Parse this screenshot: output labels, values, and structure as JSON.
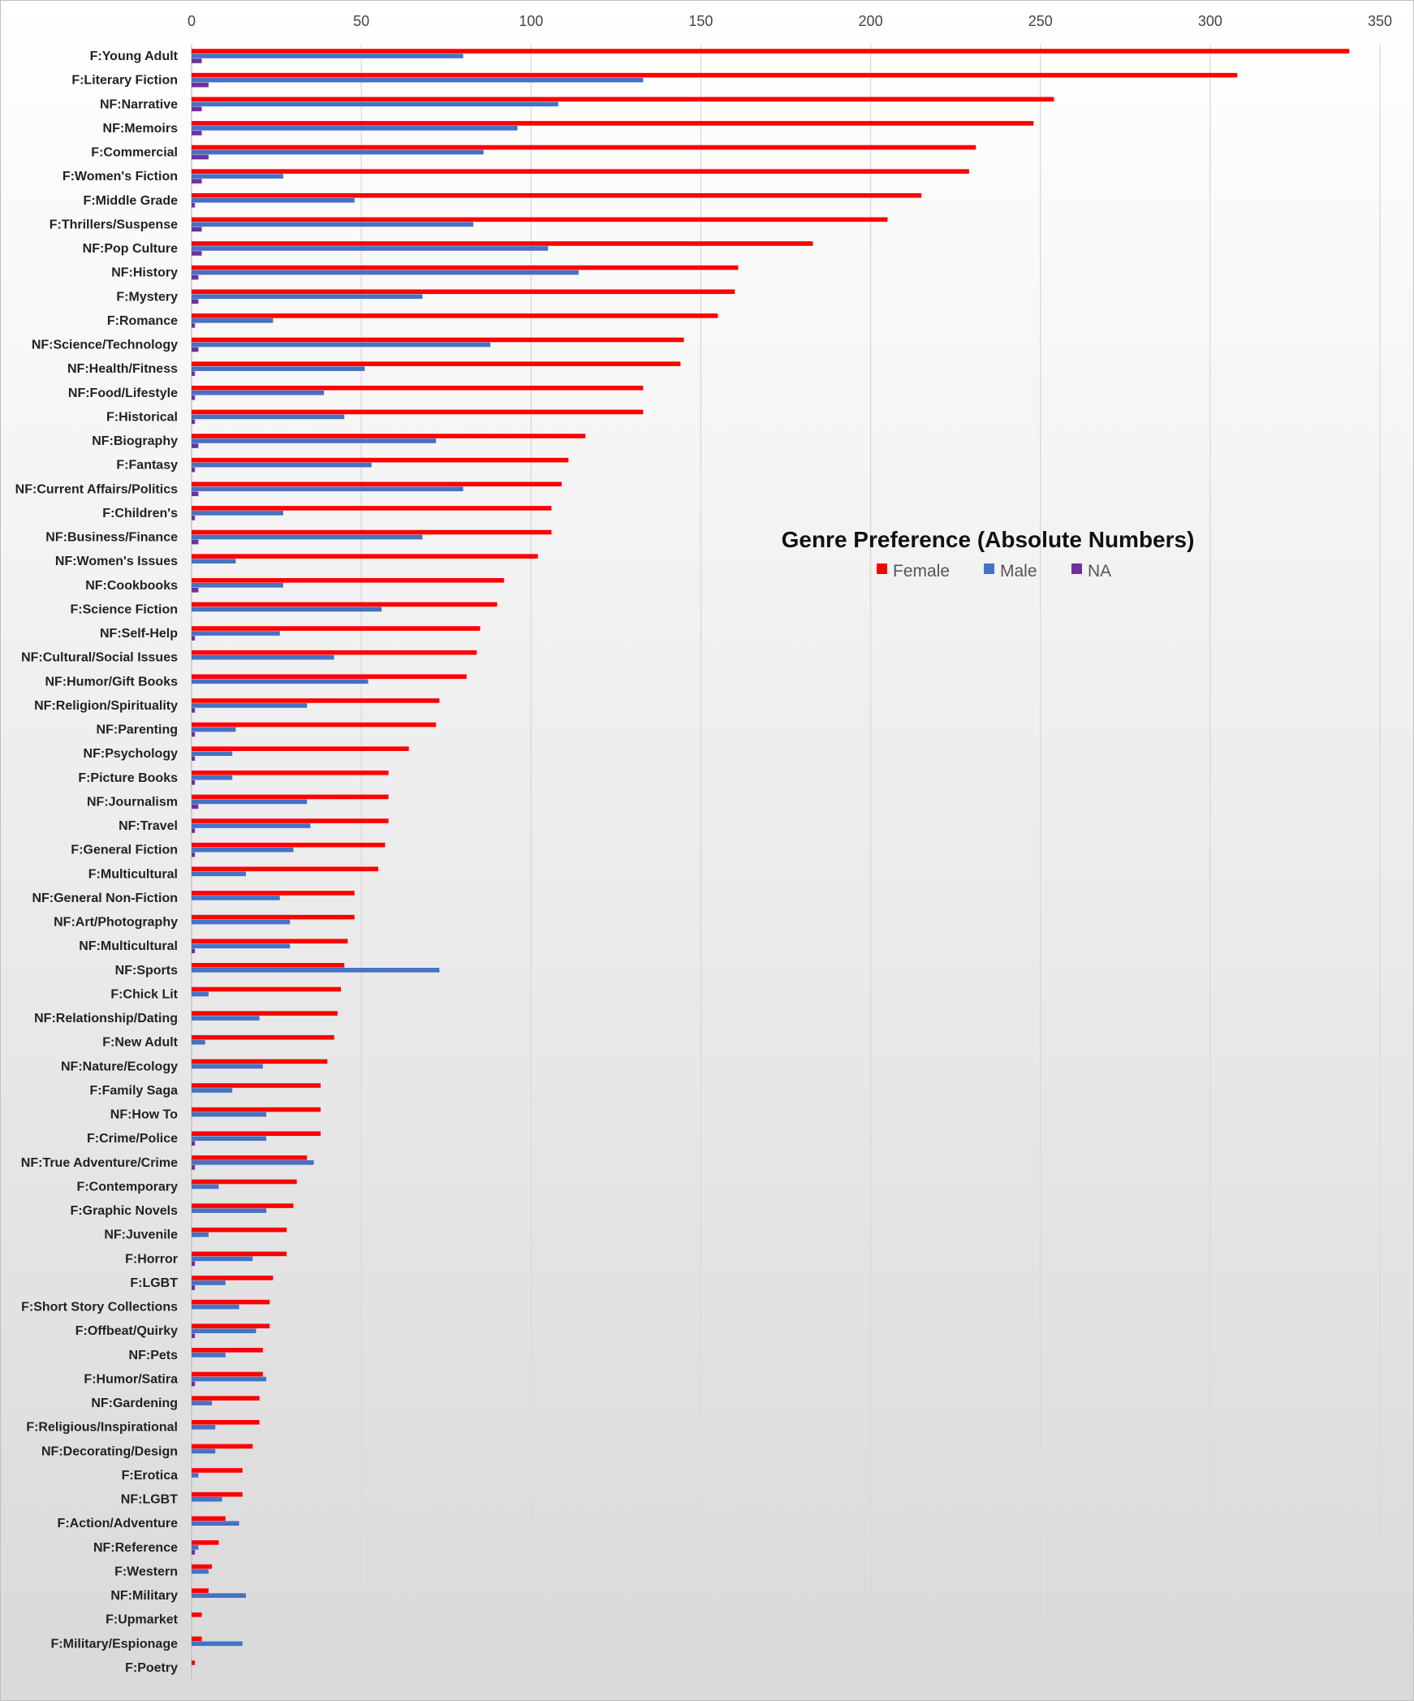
{
  "chart_data": {
    "type": "bar",
    "orientation": "horizontal",
    "title": "Genre Preference (Absolute Numbers)",
    "xlabel": "",
    "ylabel": "",
    "xlim": [
      0,
      350
    ],
    "xticks": [
      0,
      50,
      100,
      150,
      200,
      250,
      300,
      350
    ],
    "grid": true,
    "legend_position": "right-middle",
    "categories": [
      "F:Young Adult",
      "F:Literary Fiction",
      "NF:Narrative",
      "NF:Memoirs",
      "F:Commercial",
      "F:Women's Fiction",
      "F:Middle Grade",
      "F:Thrillers/Suspense",
      "NF:Pop Culture",
      "NF:History",
      "F:Mystery",
      "F:Romance",
      "NF:Science/Technology",
      "NF:Health/Fitness",
      "NF:Food/Lifestyle",
      "F:Historical",
      "NF:Biography",
      "F:Fantasy",
      "NF:Current Affairs/Politics",
      "F:Children's",
      "NF:Business/Finance",
      "NF:Women's Issues",
      "NF:Cookbooks",
      "F:Science Fiction",
      "NF:Self-Help",
      "NF:Cultural/Social Issues",
      "NF:Humor/Gift Books",
      "NF:Religion/Spirituality",
      "NF:Parenting",
      "NF:Psychology",
      "F:Picture Books",
      "NF:Journalism",
      "NF:Travel",
      "F:General Fiction",
      "F:Multicultural",
      "NF:General Non-Fiction",
      "NF:Art/Photography",
      "NF:Multicultural",
      "NF:Sports",
      "F:Chick Lit",
      "NF:Relationship/Dating",
      "F:New Adult",
      "NF:Nature/Ecology",
      "F:Family Saga",
      "NF:How To",
      "F:Crime/Police",
      "NF:True Adventure/Crime",
      "F:Contemporary",
      "F:Graphic Novels",
      "NF:Juvenile",
      "F:Horror",
      "F:LGBT",
      "F:Short Story Collections",
      "F:Offbeat/Quirky",
      "NF:Pets",
      "F:Humor/Satira",
      "NF:Gardening",
      "F:Religious/Inspirational",
      "NF:Decorating/Design",
      "F:Erotica",
      "NF:LGBT",
      "F:Action/Adventure",
      "NF:Reference",
      "F:Western",
      "NF:Military",
      "F:Upmarket",
      "F:Military/Espionage",
      "F:Poetry"
    ],
    "series": [
      {
        "name": "Female",
        "color": "#FF0000",
        "values": [
          341,
          308,
          254,
          248,
          231,
          229,
          215,
          205,
          183,
          161,
          160,
          155,
          145,
          144,
          133,
          133,
          116,
          111,
          109,
          106,
          106,
          102,
          92,
          90,
          85,
          84,
          81,
          73,
          72,
          64,
          58,
          58,
          58,
          57,
          55,
          48,
          48,
          46,
          45,
          44,
          43,
          42,
          40,
          38,
          38,
          38,
          34,
          31,
          30,
          28,
          28,
          24,
          23,
          23,
          21,
          21,
          20,
          20,
          18,
          15,
          15,
          10,
          8,
          6,
          5,
          3,
          3,
          1
        ]
      },
      {
        "name": "Male",
        "color": "#4472C4",
        "values": [
          80,
          133,
          108,
          96,
          86,
          27,
          48,
          83,
          105,
          114,
          68,
          24,
          88,
          51,
          39,
          45,
          72,
          53,
          80,
          27,
          68,
          13,
          27,
          56,
          26,
          42,
          52,
          34,
          13,
          12,
          12,
          34,
          35,
          30,
          16,
          26,
          29,
          29,
          73,
          5,
          20,
          4,
          21,
          12,
          22,
          22,
          36,
          8,
          22,
          5,
          18,
          10,
          14,
          19,
          10,
          22,
          6,
          7,
          7,
          2,
          9,
          14,
          2,
          5,
          16,
          0,
          15,
          0
        ]
      },
      {
        "name": "NA",
        "color": "#7030A0",
        "values": [
          3,
          5,
          3,
          3,
          5,
          3,
          1,
          3,
          3,
          2,
          2,
          1,
          2,
          1,
          1,
          1,
          2,
          1,
          2,
          1,
          2,
          0,
          2,
          0,
          1,
          0,
          0,
          1,
          1,
          1,
          1,
          2,
          1,
          1,
          0,
          0,
          0,
          1,
          0,
          0,
          0,
          0,
          0,
          0,
          0,
          1,
          1,
          0,
          0,
          0,
          1,
          1,
          0,
          1,
          0,
          1,
          0,
          0,
          0,
          0,
          0,
          0,
          1,
          0,
          0,
          0,
          0,
          0
        ]
      }
    ]
  }
}
